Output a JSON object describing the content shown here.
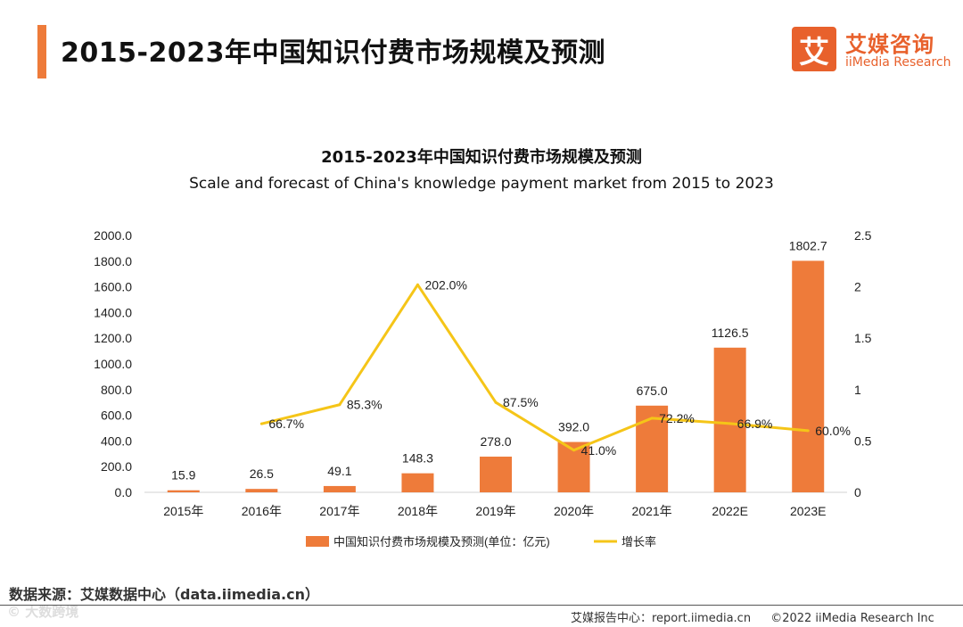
{
  "header": {
    "title": "2015-2023年中国知识付费市场规模及预测",
    "logo_cn": "艾媒咨询",
    "logo_en": "iiMedia Research",
    "logo_mark": "艾"
  },
  "chart_data": {
    "type": "bar+line",
    "title": "2015-2023年中国知识付费市场规模及预测",
    "subtitle": "Scale and forecast of China's knowledge payment market from 2015 to 2023",
    "categories": [
      "2015年",
      "2016年",
      "2017年",
      "2018年",
      "2019年",
      "2020年",
      "2021年",
      "2022E",
      "2023E"
    ],
    "series": [
      {
        "name": "中国知识付费市场规模及预测(单位：亿元)",
        "type": "bar",
        "axis": "left",
        "color": "#ee7b3a",
        "values": [
          15.9,
          26.5,
          49.1,
          148.3,
          278.0,
          392.0,
          675.0,
          1126.5,
          1802.7
        ],
        "labels": [
          "15.9",
          "26.5",
          "49.1",
          "148.3",
          "278.0",
          "392.0",
          "675.0",
          "1126.5",
          "1802.7"
        ]
      },
      {
        "name": "增长率",
        "type": "line",
        "axis": "right",
        "color": "#f5c518",
        "values": [
          null,
          0.667,
          0.853,
          2.02,
          0.875,
          0.41,
          0.722,
          0.669,
          0.6
        ],
        "labels": [
          "",
          "66.7%",
          "85.3%",
          "202.0%",
          "87.5%",
          "41.0%",
          "72.2%",
          "66.9%",
          "60.0%"
        ]
      }
    ],
    "y_left": {
      "range": [
        0,
        2000
      ],
      "ticks": [
        "0.0",
        "200.0",
        "400.0",
        "600.0",
        "800.0",
        "1000.0",
        "1200.0",
        "1400.0",
        "1600.0",
        "1800.0",
        "2000.0"
      ]
    },
    "y_right": {
      "range": [
        0,
        2.5
      ],
      "ticks": [
        "0",
        "0.5",
        "1",
        "1.5",
        "2",
        "2.5"
      ]
    },
    "legend_position": "bottom"
  },
  "footer": {
    "source": "数据来源：艾媒数据中心（data.iimedia.cn）",
    "watermark": "© 大数跨境",
    "report": "艾媒报告中心：report.iimedia.cn",
    "copyright": "©2022  iiMedia Research  Inc"
  }
}
